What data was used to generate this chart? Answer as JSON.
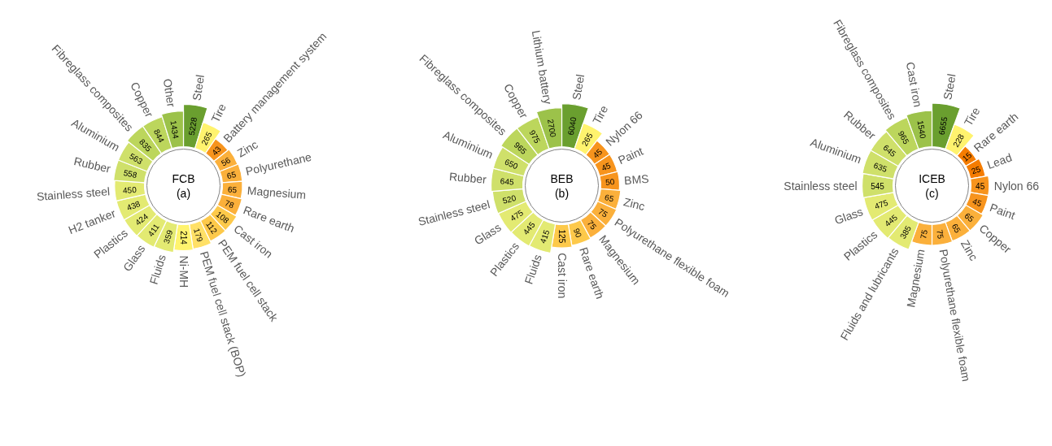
{
  "chart_data": [
    {
      "type": "other",
      "title": "FCB",
      "subtitle": "(a)",
      "data_labels": true,
      "categories": [
        "Steel",
        "Tire",
        "Battery management system",
        "Zinc",
        "Polyurethane",
        "Magnesium",
        "Rare earth",
        "Cast iron",
        "PEM fuel cell stack",
        "PEM fuel cell stack (BOP)",
        "Ni-MH",
        "Fluids",
        "Glass",
        "Plastics",
        "H2 tanker",
        "Stainless steel",
        "Rubber",
        "Aluminium",
        "Fibreglass composites",
        "Copper",
        "Other"
      ],
      "values": [
        5228,
        265,
        43,
        56,
        65,
        65,
        78,
        108,
        112,
        179,
        214,
        359,
        411,
        424,
        438,
        450,
        558,
        563,
        835,
        844,
        1434
      ],
      "colors": [
        "#6a9f2f",
        "#fff36e",
        "#f7941d",
        "#fbb03b",
        "#fbb03b",
        "#fbb03b",
        "#fbb03b",
        "#fdc94a",
        "#fdc94a",
        "#ffe066",
        "#fff36e",
        "#e3ea72",
        "#e3ea72",
        "#e3ea72",
        "#e3ea72",
        "#e3ea72",
        "#cfe06a",
        "#cfe06a",
        "#bcd65c",
        "#bcd65c",
        "#9cc24a"
      ]
    },
    {
      "type": "other",
      "title": "BEB",
      "subtitle": "(b)",
      "data_labels": true,
      "categories": [
        "Steel",
        "Tire",
        "Nylon 66",
        "Paint",
        "BMS",
        "Zinc",
        "Polyurethane flexible foam",
        "Magnesium",
        "Rare earth",
        "Cast iron",
        "Fluids",
        "Plastics",
        "Glass",
        "Stainless steel",
        "Rubber",
        "Aluminium",
        "Fibreglass composites",
        "Copper",
        "Lithium battery"
      ],
      "values": [
        6040,
        265,
        45,
        45,
        50,
        65,
        75,
        75,
        90,
        125,
        415,
        445,
        475,
        520,
        645,
        650,
        965,
        975,
        2700
      ],
      "colors": [
        "#6a9f2f",
        "#fff36e",
        "#f7941d",
        "#f7941d",
        "#f7941d",
        "#fbb03b",
        "#fbb03b",
        "#fbb03b",
        "#fdc94a",
        "#fdc94a",
        "#e3ea72",
        "#e3ea72",
        "#e3ea72",
        "#cfe06a",
        "#cfe06a",
        "#cfe06a",
        "#bcd65c",
        "#bcd65c",
        "#9cc24a"
      ]
    },
    {
      "type": "other",
      "title": "ICEB",
      "subtitle": "(c)",
      "data_labels": true,
      "categories": [
        "Steel",
        "Tire",
        "Rare earth",
        "Lead",
        "Nylon 66",
        "Paint",
        "Copper",
        "Zinc",
        "Polyurethane flexible foam",
        "Magnesium",
        "Fluids and lubricants",
        "Plastics",
        "Glass",
        "Stainless steel",
        "Aluminium",
        "Rubber",
        "Fibreglass composites",
        "Cast iron"
      ],
      "values": [
        6655,
        228,
        15,
        25,
        45,
        45,
        65,
        65,
        75,
        75,
        385,
        445,
        475,
        545,
        635,
        645,
        965,
        1540
      ],
      "colors": [
        "#6a9f2f",
        "#fff36e",
        "#f57c00",
        "#f57c00",
        "#f7941d",
        "#f7941d",
        "#fbb03b",
        "#fbb03b",
        "#fbb03b",
        "#fbb03b",
        "#e3ea72",
        "#e3ea72",
        "#e3ea72",
        "#cfe06a",
        "#cfe06a",
        "#cfe06a",
        "#bcd65c",
        "#9cc24a"
      ]
    }
  ]
}
